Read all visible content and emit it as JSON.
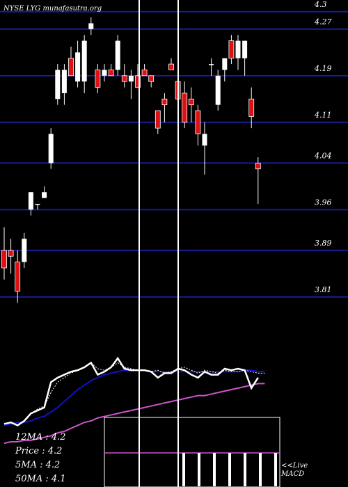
{
  "header": {
    "title": "NYSE LYG munafasutra.org"
  },
  "colors": {
    "background": "#000000",
    "grid": "#1a1a9a",
    "up": "#ffffff",
    "down": "#dd1111",
    "ma_fast": "#ffffff",
    "ma_mid": "#1010cc",
    "ma_slow": "#cc55cc",
    "macd": "#ffffff"
  },
  "chart_data": {
    "type": "candlestick",
    "y_ticks": [
      "4.3",
      "4.27",
      "4.19",
      "4.11",
      "4.04",
      "3.96",
      "3.89",
      "3.81"
    ],
    "ylim": [
      3.78,
      4.32
    ],
    "grid": true,
    "candles": [
      {
        "o": 3.89,
        "h": 3.93,
        "l": 3.84,
        "c": 3.86
      },
      {
        "o": 3.89,
        "h": 3.91,
        "l": 3.85,
        "c": 3.88
      },
      {
        "o": 3.87,
        "h": 3.89,
        "l": 3.8,
        "c": 3.82
      },
      {
        "o": 3.87,
        "h": 3.92,
        "l": 3.86,
        "c": 3.91
      },
      {
        "o": 3.96,
        "h": 3.99,
        "l": 3.95,
        "c": 3.99
      },
      {
        "o": 3.97,
        "h": 3.97,
        "l": 3.96,
        "c": 3.97
      },
      {
        "o": 3.98,
        "h": 4.0,
        "l": 3.98,
        "c": 3.99
      },
      {
        "o": 4.04,
        "h": 4.1,
        "l": 4.03,
        "c": 4.09
      },
      {
        "o": 4.15,
        "h": 4.21,
        "l": 4.14,
        "c": 4.2
      },
      {
        "o": 4.16,
        "h": 4.21,
        "l": 4.14,
        "c": 4.2
      },
      {
        "o": 4.22,
        "h": 4.24,
        "l": 4.19,
        "c": 4.19
      },
      {
        "o": 4.18,
        "h": 4.25,
        "l": 4.17,
        "c": 4.23
      },
      {
        "o": 4.18,
        "h": 4.26,
        "l": 4.16,
        "c": 4.25
      },
      {
        "o": 4.27,
        "h": 4.29,
        "l": 4.26,
        "c": 4.28
      },
      {
        "o": 4.2,
        "h": 4.21,
        "l": 4.16,
        "c": 4.17
      },
      {
        "o": 4.19,
        "h": 4.21,
        "l": 4.18,
        "c": 4.2
      },
      {
        "o": 4.2,
        "h": 4.21,
        "l": 4.19,
        "c": 4.19
      },
      {
        "o": 4.2,
        "h": 4.26,
        "l": 4.19,
        "c": 4.25
      },
      {
        "o": 4.19,
        "h": 4.21,
        "l": 4.17,
        "c": 4.18
      },
      {
        "o": 4.18,
        "h": 4.2,
        "l": 4.15,
        "c": 4.19
      },
      {
        "o": 4.19,
        "h": 4.21,
        "l": 4.17,
        "c": 4.17
      },
      {
        "o": 4.2,
        "h": 4.21,
        "l": 4.19,
        "c": 4.19
      },
      {
        "o": 4.19,
        "h": 4.19,
        "l": 4.17,
        "c": 4.18
      },
      {
        "o": 4.13,
        "h": 4.13,
        "l": 4.09,
        "c": 4.1
      },
      {
        "o": 4.15,
        "h": 4.16,
        "l": 4.11,
        "c": 4.14
      },
      {
        "o": 4.21,
        "h": 4.22,
        "l": 4.2,
        "c": 4.2
      },
      {
        "o": 4.18,
        "h": 4.2,
        "l": 4.15,
        "c": 4.15
      },
      {
        "o": 4.16,
        "h": 4.18,
        "l": 4.1,
        "c": 4.11
      },
      {
        "o": 4.15,
        "h": 4.17,
        "l": 4.11,
        "c": 4.14
      },
      {
        "o": 4.13,
        "h": 4.14,
        "l": 4.07,
        "c": 4.09
      },
      {
        "o": 4.07,
        "h": 4.11,
        "l": 4.02,
        "c": 4.09
      },
      {
        "o": 4.21,
        "h": 4.22,
        "l": 4.19,
        "c": 4.21
      },
      {
        "o": 4.14,
        "h": 4.2,
        "l": 4.13,
        "c": 4.19
      },
      {
        "o": 4.2,
        "h": 4.22,
        "l": 4.18,
        "c": 4.22
      },
      {
        "o": 4.25,
        "h": 4.26,
        "l": 4.21,
        "c": 4.22
      },
      {
        "o": 4.22,
        "h": 4.26,
        "l": 4.2,
        "c": 4.25
      },
      {
        "o": 4.22,
        "h": 4.25,
        "l": 4.19,
        "c": 4.25
      },
      {
        "o": 4.15,
        "h": 4.17,
        "l": 4.1,
        "c": 4.12
      },
      {
        "o": 4.04,
        "h": 4.05,
        "l": 3.97,
        "c": 4.03
      }
    ],
    "ma_fast": [
      3.71,
      3.72,
      3.7,
      3.73,
      3.78,
      3.81,
      3.83,
      3.92,
      3.99,
      4.02,
      4.05,
      4.07,
      4.09,
      4.12,
      4.08,
      4.07,
      4.09,
      4.12,
      4.09,
      4.08,
      4.07,
      4.07,
      4.06,
      4.07,
      4.05,
      4.06,
      4.08,
      4.09,
      4.07,
      4.05,
      4.07,
      4.06,
      4.05,
      4.07,
      4.06,
      4.06,
      4.07,
      4.06,
      4.05,
      4.05
    ],
    "ma_mid": [
      3.7,
      3.71,
      3.72,
      3.72,
      3.73,
      3.75,
      3.76,
      3.79,
      3.82,
      3.86,
      3.9,
      3.94,
      3.97,
      4.0,
      4.02,
      4.04,
      4.05,
      4.06,
      4.07,
      4.07,
      4.07,
      4.07,
      4.06,
      4.06,
      4.06,
      4.06,
      4.06,
      4.06,
      4.06,
      4.06,
      4.06,
      4.06,
      4.06,
      4.06,
      4.06,
      4.06,
      4.07,
      4.07,
      4.06,
      4.06
    ],
    "ma_slow": [
      3.58,
      3.59,
      3.59,
      3.6,
      3.6,
      3.61,
      3.62,
      3.63,
      3.65,
      3.66,
      3.68,
      3.7,
      3.72,
      3.73,
      3.75,
      3.76,
      3.77,
      3.78,
      3.79,
      3.8,
      3.81,
      3.82,
      3.83,
      3.84,
      3.85,
      3.86,
      3.87,
      3.88,
      3.89,
      3.9,
      3.9,
      3.91,
      3.92,
      3.93,
      3.94,
      3.95,
      3.96,
      3.97,
      3.98,
      3.98
    ],
    "price_line": [
      3.71,
      3.72,
      3.7,
      3.73,
      3.78,
      3.8,
      3.82,
      3.99,
      4.02,
      4.04,
      4.06,
      4.07,
      4.09,
      4.12,
      4.04,
      4.06,
      4.09,
      4.15,
      4.08,
      4.07,
      4.07,
      4.07,
      4.06,
      4.02,
      4.05,
      4.05,
      4.08,
      4.07,
      4.04,
      4.02,
      4.06,
      4.04,
      4.04,
      4.08,
      4.07,
      4.08,
      4.07,
      3.95,
      4.02
    ],
    "ma_ranges": {
      "main": [
        3.78,
        4.32
      ],
      "lower": [
        3.52,
        4.22
      ]
    },
    "macd_bars": [
      {
        "v": 1.0
      },
      {
        "v": -0.05
      },
      {
        "v": 1.0
      },
      {
        "v": -0.05
      },
      {
        "v": -0.05
      },
      {
        "v": -0.05
      },
      {
        "v": -0.05
      }
    ],
    "legend": {
      "ma12": "12MA : 4.2",
      "price": "Price : 4.2",
      "ma5": "5MA : 4.2",
      "ma50": "50MA : 4.1"
    },
    "live_label": "<<Live",
    "macd_label": "MACD"
  }
}
